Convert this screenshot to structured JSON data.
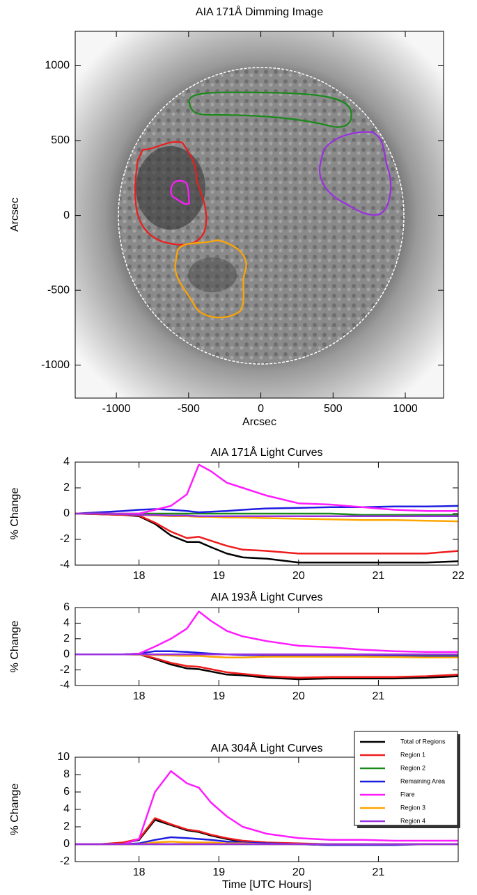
{
  "chart_data": [
    {
      "type": "image",
      "title": "AIA 171Å Dimming Image",
      "xlabel": "Arcsec",
      "ylabel": "Arcsec",
      "xlim": [
        -1285,
        1265
      ],
      "ylim": [
        -1220,
        1230
      ],
      "xticks": [
        -1000,
        -500,
        0,
        500,
        1000
      ],
      "yticks": [
        -1000,
        -500,
        0,
        500,
        1000
      ]
    },
    {
      "type": "line",
      "title": "AIA 171Å Light Curves",
      "ylabel": "% Change",
      "x": [
        17.2,
        17.5,
        17.8,
        18.0,
        18.2,
        18.4,
        18.6,
        18.75,
        18.9,
        19.1,
        19.3,
        19.6,
        20.0,
        20.4,
        20.8,
        21.2,
        21.6,
        22.0
      ],
      "xlim": [
        17.2,
        22
      ],
      "ylim": [
        -4,
        4
      ],
      "xticks": [
        18,
        19,
        20,
        21,
        22
      ],
      "yticks": [
        -4,
        -2,
        0,
        2,
        4
      ],
      "series": [
        {
          "color": "#000000",
          "values": [
            0,
            -0.05,
            -0.1,
            -0.2,
            -0.8,
            -1.7,
            -2.2,
            -2.2,
            -2.6,
            -3.1,
            -3.4,
            -3.5,
            -3.8,
            -3.8,
            -3.8,
            -3.8,
            -3.8,
            -3.7
          ]
        },
        {
          "color": "#ee1c1c",
          "values": [
            0,
            -0.05,
            -0.1,
            -0.15,
            -0.7,
            -1.4,
            -1.9,
            -1.8,
            -2.1,
            -2.5,
            -2.8,
            -2.9,
            -3.1,
            -3.1,
            -3.1,
            -3.1,
            -3.1,
            -2.9
          ]
        },
        {
          "color": "#1a8a1a",
          "values": [
            0,
            0,
            0,
            0,
            0,
            0,
            0,
            0,
            0,
            0,
            0,
            0,
            0,
            0,
            -0.1,
            -0.1,
            -0.1,
            -0.1
          ]
        },
        {
          "color": "#1c1ce0",
          "values": [
            0,
            0.1,
            0.2,
            0.3,
            0.35,
            0.3,
            0.2,
            0.1,
            0.15,
            0.2,
            0.3,
            0.4,
            0.45,
            0.5,
            0.5,
            0.55,
            0.55,
            0.6
          ]
        },
        {
          "color": "#ff1cff",
          "values": [
            0,
            0,
            0,
            0,
            0.3,
            0.6,
            1.5,
            3.8,
            3.3,
            2.4,
            2.0,
            1.4,
            0.8,
            0.7,
            0.5,
            0.3,
            0.2,
            0.2
          ]
        },
        {
          "color": "#ffa500",
          "values": [
            0,
            0,
            -0.05,
            -0.1,
            -0.15,
            -0.2,
            -0.2,
            -0.25,
            -0.25,
            -0.3,
            -0.3,
            -0.35,
            -0.4,
            -0.45,
            -0.5,
            -0.5,
            -0.55,
            -0.6
          ]
        },
        {
          "color": "#9a30e0",
          "values": [
            0,
            0,
            -0.05,
            -0.1,
            -0.1,
            -0.15,
            -0.15,
            -0.2,
            -0.2,
            -0.2,
            -0.2,
            -0.2,
            -0.2,
            -0.2,
            -0.2,
            -0.2,
            -0.2,
            -0.2
          ]
        }
      ]
    },
    {
      "type": "line",
      "title": "AIA 193Å Light Curves",
      "ylabel": "% Change",
      "x": [
        17.2,
        17.5,
        17.8,
        18.0,
        18.2,
        18.4,
        18.6,
        18.75,
        18.9,
        19.1,
        19.3,
        19.6,
        20.0,
        20.4,
        20.8,
        21.2,
        21.6,
        22.0
      ],
      "xlim": [
        17.2,
        22
      ],
      "ylim": [
        -4,
        6
      ],
      "xticks": [
        18,
        19,
        20,
        21
      ],
      "yticks": [
        -4,
        -2,
        0,
        2,
        4,
        6
      ],
      "series": [
        {
          "color": "#000000",
          "values": [
            0,
            0,
            0,
            0,
            -0.6,
            -1.3,
            -1.8,
            -1.9,
            -2.2,
            -2.6,
            -2.7,
            -3.0,
            -3.2,
            -3.1,
            -3.1,
            -3.1,
            -3.0,
            -2.8
          ]
        },
        {
          "color": "#ee1c1c",
          "values": [
            0,
            0,
            0,
            0,
            -0.5,
            -1.1,
            -1.5,
            -1.6,
            -1.9,
            -2.3,
            -2.5,
            -2.8,
            -3.0,
            -2.9,
            -2.9,
            -2.9,
            -2.8,
            -2.6
          ]
        },
        {
          "color": "#1a8a1a",
          "values": [
            0,
            0,
            0,
            0,
            0,
            0,
            0,
            0,
            0,
            0,
            0,
            -0.05,
            -0.1,
            -0.1,
            -0.1,
            -0.1,
            -0.15,
            -0.15
          ]
        },
        {
          "color": "#1c1ce0",
          "values": [
            0,
            0,
            0,
            0.1,
            0.4,
            0.4,
            0.3,
            0.2,
            0.1,
            0,
            -0.1,
            -0.1,
            -0.15,
            -0.2,
            -0.2,
            -0.25,
            -0.3,
            -0.3
          ]
        },
        {
          "color": "#ff1cff",
          "values": [
            0,
            0,
            0,
            0.1,
            1.0,
            2.0,
            3.3,
            5.5,
            4.3,
            3.0,
            2.3,
            1.7,
            1.1,
            0.9,
            0.6,
            0.4,
            0.3,
            0.3
          ]
        },
        {
          "color": "#ffa500",
          "values": [
            0,
            0,
            0,
            -0.05,
            -0.1,
            -0.15,
            -0.2,
            -0.2,
            -0.3,
            -0.4,
            -0.4,
            -0.3,
            -0.3,
            -0.3,
            -0.3,
            -0.35,
            -0.4,
            -0.4
          ]
        },
        {
          "color": "#9a30e0",
          "values": [
            0,
            0,
            0,
            0,
            0,
            0,
            0,
            0,
            0,
            0,
            0,
            0,
            0,
            0,
            0,
            0,
            0,
            0
          ]
        }
      ]
    },
    {
      "type": "line",
      "title": "AIA 304Å Light Curves",
      "ylabel": "% Change",
      "xlabel": "Time [UTC Hours]",
      "x": [
        17.2,
        17.5,
        17.8,
        18.0,
        18.2,
        18.4,
        18.6,
        18.75,
        18.9,
        19.1,
        19.3,
        19.6,
        20.0,
        20.4,
        20.8,
        21.2,
        21.6,
        22.0
      ],
      "xlim": [
        17.2,
        22
      ],
      "ylim": [
        -2,
        10
      ],
      "xticks": [
        18,
        19,
        20,
        21
      ],
      "yticks": [
        -2,
        0,
        2,
        4,
        6,
        8,
        10
      ],
      "legend": "upper right",
      "series": [
        {
          "name": "Total of Regions",
          "color": "#000000",
          "values": [
            0,
            0,
            0.1,
            0.5,
            2.8,
            2.2,
            1.6,
            1.4,
            1.0,
            0.6,
            0.3,
            0.1,
            0,
            -0.1,
            -0.1,
            0,
            0,
            0
          ]
        },
        {
          "name": "Region 1",
          "color": "#ee1c1c",
          "values": [
            0,
            0,
            0.2,
            0.6,
            3.0,
            2.3,
            1.7,
            1.5,
            1.1,
            0.7,
            0.4,
            0.2,
            0.1,
            0,
            0,
            0,
            0,
            0
          ]
        },
        {
          "name": "Region 2",
          "color": "#1a8a1a",
          "values": [
            0,
            0,
            0,
            0,
            0,
            0,
            0,
            0,
            0,
            0,
            0,
            0,
            0,
            0,
            0,
            0,
            0,
            0
          ]
        },
        {
          "name": "Remaining Area",
          "color": "#1c1ce0",
          "values": [
            0,
            0,
            0,
            0.1,
            0.5,
            0.8,
            0.7,
            0.6,
            0.5,
            0.3,
            0.2,
            0.1,
            0,
            -0.1,
            -0.1,
            -0.1,
            0,
            0
          ]
        },
        {
          "name": "Flare",
          "color": "#ff1cff",
          "values": [
            0,
            0,
            0,
            0.6,
            6.0,
            8.4,
            7.0,
            6.5,
            4.8,
            3.2,
            2.0,
            1.2,
            0.7,
            0.5,
            0.5,
            0.4,
            0.4,
            0.4
          ]
        },
        {
          "name": "Region 3",
          "color": "#ffa500",
          "values": [
            0,
            0,
            0,
            0,
            0.2,
            0.3,
            0.2,
            0.2,
            0.2,
            0.1,
            0.1,
            0,
            0,
            0,
            0,
            0,
            0,
            0
          ]
        },
        {
          "name": "Region 4",
          "color": "#9a30e0",
          "values": [
            0,
            0,
            0,
            0,
            0,
            0,
            0,
            0,
            0,
            0,
            0,
            0,
            0,
            0,
            0,
            0,
            0,
            0
          ]
        }
      ]
    }
  ]
}
